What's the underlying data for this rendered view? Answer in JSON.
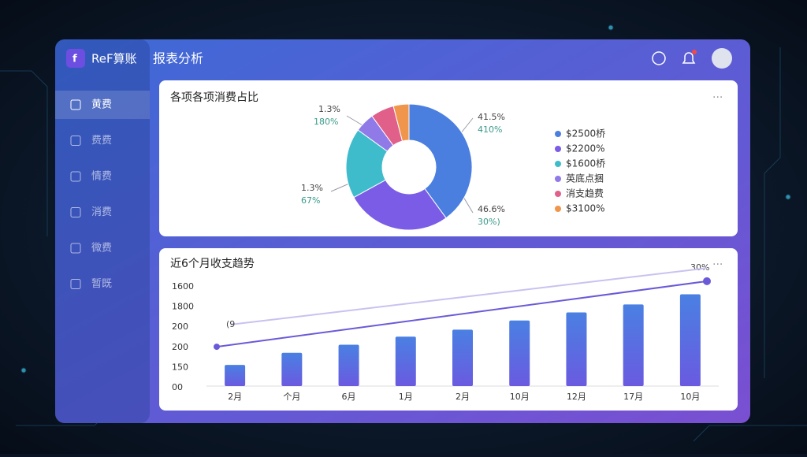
{
  "header": {
    "logo": "ReF算账",
    "title": "报表分析"
  },
  "sidebar": {
    "items": [
      "黄费",
      "费费",
      "情费",
      "消费",
      "微费",
      "暂既"
    ],
    "active": 0
  },
  "chart_data": [
    {
      "type": "pie",
      "title": "各项各项消费占比",
      "categories": [
        "$2500桥",
        "$2200%",
        "$1600桥",
        "英底点捆",
        "消支趋费",
        "$3100%"
      ],
      "values": [
        40,
        27,
        18,
        5,
        6,
        4
      ],
      "colors": [
        "#4a7fe0",
        "#7a5ce6",
        "#3fbccc",
        "#8f7ae8",
        "#e0608a",
        "#f0954c"
      ],
      "annotations": [
        "1.3%",
        "180%",
        "41.5%",
        "410%",
        "1.3%",
        "67%",
        "46.6%",
        "30%)"
      ],
      "legend": "right"
    },
    {
      "type": "bar",
      "title": "近6个月收支趋势",
      "categories": [
        "2月",
        "个月",
        "6月",
        "1月",
        "2月",
        "10月",
        "12月",
        "17月",
        "10月"
      ],
      "values": [
        21,
        33,
        41,
        49,
        56,
        65,
        73,
        81,
        91
      ],
      "y_labels": [
        "1600",
        "1800",
        "200",
        "200",
        "150",
        "00"
      ],
      "ylim": [
        0,
        100
      ],
      "color": "#4f78e0",
      "trend_lines": [
        {
          "values": [
            39,
            104
          ],
          "color": "#6a5ad8",
          "label": "30%"
        },
        {
          "values": [
            61,
            117
          ],
          "color": "#c8c2f0",
          "label": "(9"
        }
      ]
    }
  ]
}
